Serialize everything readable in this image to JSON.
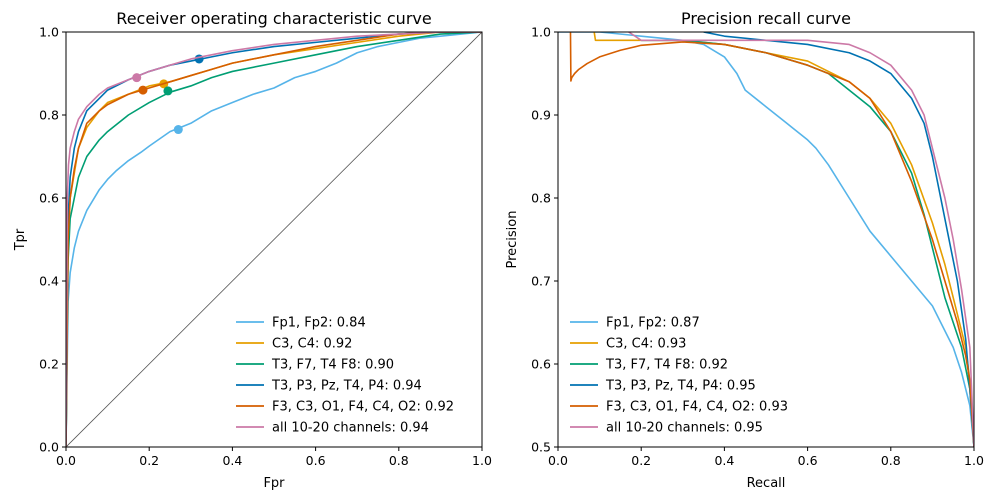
{
  "chart_data": [
    {
      "type": "line",
      "title": "Receiver operating characteristic curve",
      "xlabel": "Fpr",
      "ylabel": "Tpr",
      "xlim": [
        0,
        1
      ],
      "ylim": [
        0,
        1
      ],
      "xticks": [
        "0.0",
        "0.2",
        "0.4",
        "0.6",
        "0.8",
        "1.0"
      ],
      "yticks": [
        "0.0",
        "0.2",
        "0.4",
        "0.6",
        "0.8",
        "1.0"
      ],
      "legend_position": "bottom-right",
      "grid": false,
      "diagonal_reference": true,
      "series": [
        {
          "name": "Fp1, Fp2: 0.84",
          "color": "#56b4e9",
          "x": [
            0,
            0.005,
            0.01,
            0.02,
            0.03,
            0.05,
            0.08,
            0.1,
            0.12,
            0.15,
            0.18,
            0.2,
            0.25,
            0.3,
            0.35,
            0.4,
            0.45,
            0.5,
            0.55,
            0.6,
            0.65,
            0.7,
            0.75,
            0.8,
            0.85,
            0.9,
            0.95,
            1.0
          ],
          "y": [
            0,
            0.35,
            0.42,
            0.48,
            0.52,
            0.57,
            0.62,
            0.645,
            0.665,
            0.69,
            0.71,
            0.725,
            0.76,
            0.78,
            0.81,
            0.83,
            0.85,
            0.865,
            0.89,
            0.905,
            0.925,
            0.95,
            0.965,
            0.975,
            0.985,
            0.99,
            0.995,
            1.0
          ],
          "marker": {
            "x": 0.27,
            "y": 0.765
          }
        },
        {
          "name": "C3, C4: 0.92",
          "color": "#e69f00",
          "x": [
            0,
            0.005,
            0.01,
            0.02,
            0.03,
            0.05,
            0.08,
            0.1,
            0.15,
            0.2,
            0.25,
            0.3,
            0.35,
            0.4,
            0.5,
            0.6,
            0.7,
            0.8,
            0.85,
            0.9,
            1.0
          ],
          "y": [
            0,
            0.5,
            0.6,
            0.66,
            0.72,
            0.77,
            0.81,
            0.83,
            0.85,
            0.87,
            0.88,
            0.895,
            0.91,
            0.925,
            0.945,
            0.96,
            0.975,
            0.99,
            0.995,
            1.0,
            1.0
          ],
          "marker": {
            "x": 0.235,
            "y": 0.875
          }
        },
        {
          "name": "T3, F7, T4 F8: 0.90",
          "color": "#009e73",
          "x": [
            0,
            0.005,
            0.01,
            0.02,
            0.03,
            0.05,
            0.08,
            0.1,
            0.15,
            0.2,
            0.25,
            0.3,
            0.35,
            0.4,
            0.5,
            0.6,
            0.7,
            0.8,
            0.9,
            1.0
          ],
          "y": [
            0,
            0.45,
            0.55,
            0.6,
            0.65,
            0.7,
            0.74,
            0.76,
            0.8,
            0.83,
            0.855,
            0.87,
            0.89,
            0.905,
            0.925,
            0.945,
            0.965,
            0.98,
            0.995,
            1.0
          ],
          "marker": {
            "x": 0.245,
            "y": 0.858
          }
        },
        {
          "name": "T3, P3, Pz, T4, P4: 0.94",
          "color": "#0072b2",
          "x": [
            0,
            0.005,
            0.01,
            0.02,
            0.03,
            0.05,
            0.08,
            0.1,
            0.15,
            0.2,
            0.25,
            0.3,
            0.35,
            0.4,
            0.5,
            0.6,
            0.7,
            0.8,
            0.9,
            1.0
          ],
          "y": [
            0,
            0.55,
            0.65,
            0.72,
            0.76,
            0.81,
            0.84,
            0.86,
            0.885,
            0.905,
            0.92,
            0.93,
            0.94,
            0.95,
            0.965,
            0.975,
            0.985,
            0.995,
            1.0,
            1.0
          ],
          "marker": {
            "x": 0.32,
            "y": 0.935
          }
        },
        {
          "name": "F3, C3, O1, F4, C4, O2: 0.92",
          "color": "#d55e00",
          "x": [
            0,
            0.005,
            0.01,
            0.02,
            0.03,
            0.05,
            0.08,
            0.1,
            0.15,
            0.2,
            0.25,
            0.3,
            0.35,
            0.4,
            0.5,
            0.6,
            0.7,
            0.8,
            0.9,
            1.0
          ],
          "y": [
            0,
            0.5,
            0.6,
            0.67,
            0.72,
            0.78,
            0.81,
            0.825,
            0.85,
            0.865,
            0.88,
            0.895,
            0.91,
            0.925,
            0.945,
            0.965,
            0.98,
            0.995,
            1.0,
            1.0
          ],
          "marker": {
            "x": 0.185,
            "y": 0.86
          }
        },
        {
          "name": "all 10-20 channels: 0.94",
          "color": "#cc79a7",
          "x": [
            0,
            0.003,
            0.006,
            0.01,
            0.02,
            0.03,
            0.05,
            0.08,
            0.1,
            0.15,
            0.2,
            0.25,
            0.3,
            0.35,
            0.4,
            0.5,
            0.6,
            0.7,
            0.8,
            0.9,
            1.0
          ],
          "y": [
            0,
            0.6,
            0.68,
            0.72,
            0.76,
            0.79,
            0.82,
            0.85,
            0.865,
            0.885,
            0.905,
            0.92,
            0.935,
            0.945,
            0.955,
            0.97,
            0.98,
            0.99,
            0.995,
            1.0,
            1.0
          ],
          "marker": {
            "x": 0.17,
            "y": 0.89
          }
        }
      ]
    },
    {
      "type": "line",
      "title": "Precision recall curve",
      "xlabel": "Recall",
      "ylabel": "Precision",
      "xlim": [
        0,
        1
      ],
      "ylim": [
        0.5,
        1
      ],
      "xticks": [
        "0.0",
        "0.2",
        "0.4",
        "0.6",
        "0.8",
        "1.0"
      ],
      "yticks": [
        "0.5",
        "0.6",
        "0.7",
        "0.8",
        "0.9",
        "1.0"
      ],
      "legend_position": "bottom-left",
      "grid": false,
      "series": [
        {
          "name": "Fp1, Fp2: 0.87",
          "color": "#56b4e9",
          "x": [
            0,
            0.1,
            0.2,
            0.3,
            0.35,
            0.4,
            0.43,
            0.45,
            0.5,
            0.55,
            0.6,
            0.62,
            0.65,
            0.7,
            0.75,
            0.8,
            0.85,
            0.9,
            0.92,
            0.95,
            0.97,
            0.99,
            1.0
          ],
          "y": [
            1.0,
            1.0,
            0.995,
            0.99,
            0.985,
            0.97,
            0.95,
            0.93,
            0.91,
            0.89,
            0.87,
            0.86,
            0.84,
            0.8,
            0.76,
            0.73,
            0.7,
            0.67,
            0.65,
            0.62,
            0.59,
            0.55,
            0.5
          ]
        },
        {
          "name": "C3, C4: 0.93",
          "color": "#e69f00",
          "x": [
            0.087,
            0.09,
            0.1,
            0.2,
            0.3,
            0.4,
            0.5,
            0.6,
            0.7,
            0.75,
            0.8,
            0.85,
            0.9,
            0.93,
            0.95,
            0.97,
            0.98,
            0.99,
            1.0
          ],
          "y": [
            1.0,
            0.99,
            0.99,
            0.99,
            0.99,
            0.985,
            0.975,
            0.965,
            0.94,
            0.92,
            0.89,
            0.84,
            0.77,
            0.72,
            0.68,
            0.64,
            0.62,
            0.58,
            0.5
          ]
        },
        {
          "name": "T3, F7, T4 F8: 0.92",
          "color": "#009e73",
          "x": [
            0.2,
            0.3,
            0.4,
            0.5,
            0.6,
            0.65,
            0.7,
            0.75,
            0.8,
            0.85,
            0.88,
            0.9,
            0.93,
            0.95,
            0.97,
            0.99,
            1.0
          ],
          "y": [
            0.99,
            0.99,
            0.985,
            0.975,
            0.96,
            0.95,
            0.93,
            0.91,
            0.88,
            0.83,
            0.78,
            0.74,
            0.68,
            0.65,
            0.62,
            0.57,
            0.5
          ]
        },
        {
          "name": "T3, P3, Pz, T4, P4: 0.95",
          "color": "#0072b2",
          "x": [
            0.35,
            0.4,
            0.5,
            0.6,
            0.7,
            0.75,
            0.8,
            0.85,
            0.88,
            0.9,
            0.92,
            0.94,
            0.96,
            0.98,
            0.99,
            1.0
          ],
          "y": [
            1.0,
            0.995,
            0.99,
            0.985,
            0.975,
            0.965,
            0.95,
            0.92,
            0.89,
            0.85,
            0.8,
            0.75,
            0.7,
            0.63,
            0.57,
            0.5
          ]
        },
        {
          "name": "F3, C3, O1, F4, C4, O2: 0.93",
          "color": "#d55e00",
          "x": [
            0.03,
            0.031,
            0.033,
            0.04,
            0.05,
            0.07,
            0.1,
            0.15,
            0.2,
            0.3,
            0.4,
            0.5,
            0.6,
            0.7,
            0.75,
            0.8,
            0.85,
            0.9,
            0.93,
            0.96,
            0.98,
            0.99,
            1.0
          ],
          "y": [
            1.0,
            0.941,
            0.945,
            0.95,
            0.955,
            0.962,
            0.97,
            0.978,
            0.984,
            0.988,
            0.985,
            0.975,
            0.96,
            0.94,
            0.92,
            0.88,
            0.82,
            0.75,
            0.7,
            0.65,
            0.61,
            0.58,
            0.5
          ]
        },
        {
          "name": "all 10-20 channels: 0.95",
          "color": "#cc79a7",
          "x": [
            0.17,
            0.2,
            0.3,
            0.4,
            0.5,
            0.6,
            0.7,
            0.75,
            0.8,
            0.85,
            0.88,
            0.9,
            0.93,
            0.95,
            0.97,
            0.99,
            1.0
          ],
          "y": [
            1.0,
            0.99,
            0.99,
            0.99,
            0.99,
            0.99,
            0.985,
            0.975,
            0.96,
            0.93,
            0.9,
            0.86,
            0.8,
            0.75,
            0.69,
            0.62,
            0.5
          ]
        }
      ]
    }
  ]
}
